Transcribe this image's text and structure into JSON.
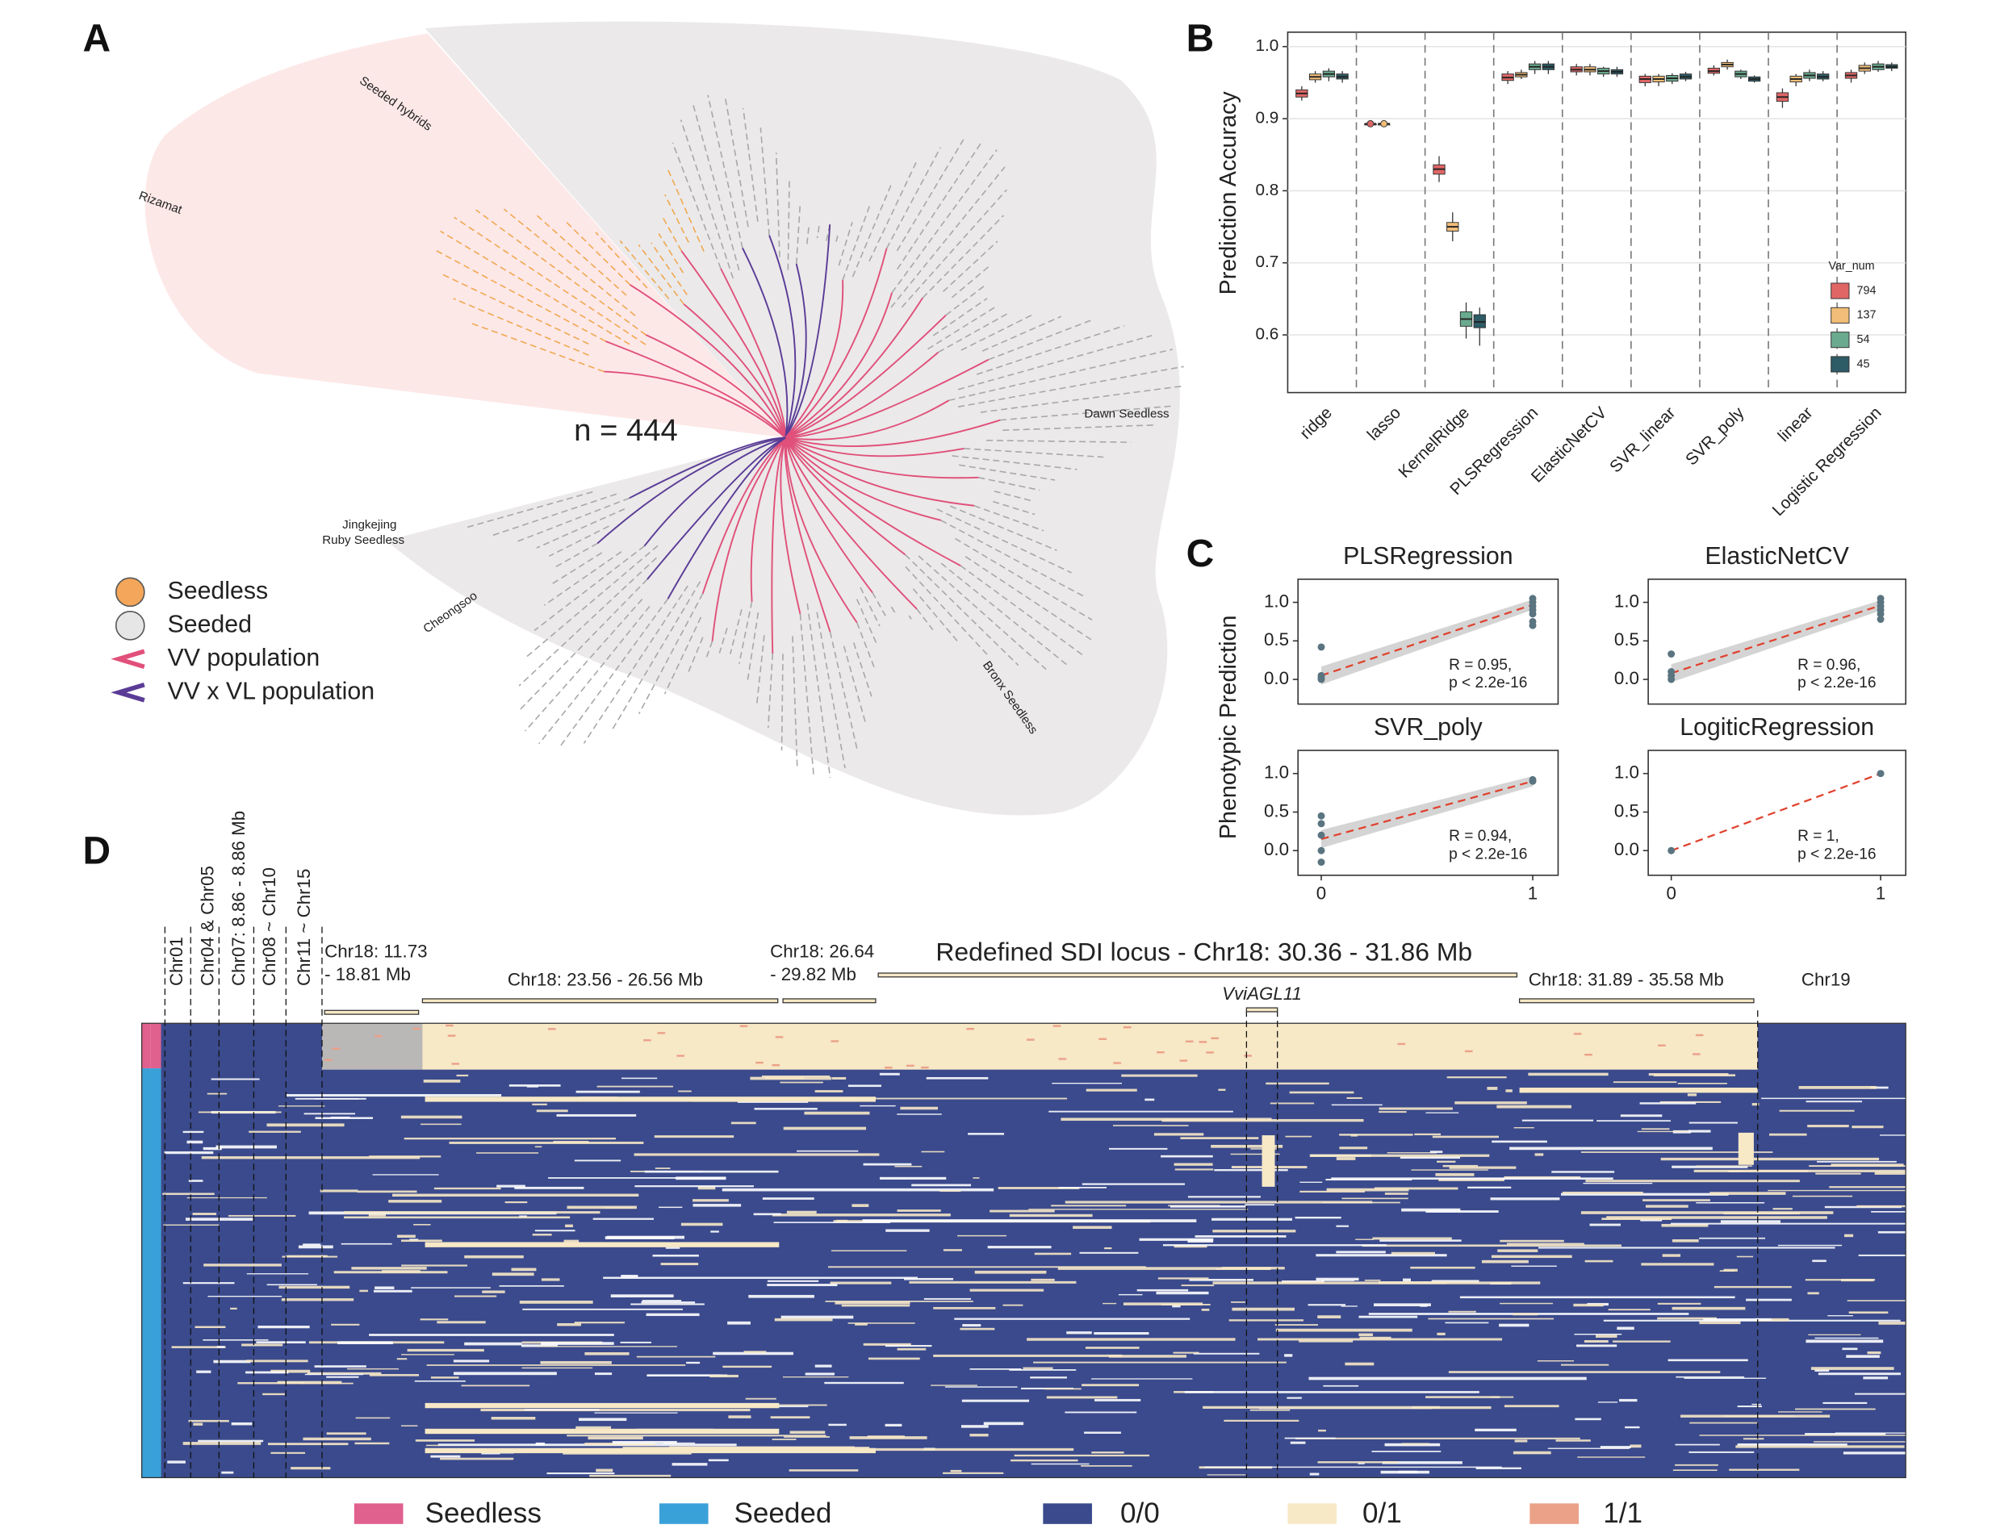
{
  "chart_data": [
    {
      "type": "tree",
      "panel": "A",
      "annotation": "n = 444",
      "tip_labels": [
        "Seeded hybrids",
        "Rizamat",
        "Dawn Seedless",
        "Jingkejing",
        "Ruby Seedless",
        "Cheongsoo",
        "Bronx Seedless"
      ],
      "legend": [
        {
          "name": "Seedless",
          "color": "#f4a65a"
        },
        {
          "name": "Seeded",
          "color": "#e6e6e6"
        },
        {
          "name": "VV population",
          "color": "#e0507a"
        },
        {
          "name": "VV x VL population",
          "color": "#5a3c96"
        }
      ]
    },
    {
      "type": "box",
      "panel": "B",
      "ylabel": "Prediction Accuracy",
      "categories": [
        "ridge",
        "lasso",
        "KernelRidge",
        "PLSRegression",
        "ElasticNetCV",
        "SVR_linear",
        "SVR_poly",
        "linear",
        "Logistic Regression"
      ],
      "ylim": [
        0.52,
        1.02
      ],
      "yticks": [
        0.6,
        0.7,
        0.8,
        0.9,
        {
          "value": 1,
          "label": "1.0"
        }
      ],
      "grid": true,
      "legend_title": "Var_num",
      "series": [
        {
          "name": "794",
          "color": "#e06666",
          "low": [
            0.925,
            0.893,
            0.812,
            0.948,
            0.96,
            0.945,
            0.96,
            0.915,
            0.95
          ],
          "q1": [
            0.93,
            0.893,
            0.823,
            0.953,
            0.965,
            0.95,
            0.963,
            0.924,
            0.956
          ],
          "median": [
            0.935,
            0.893,
            0.83,
            0.957,
            0.968,
            0.955,
            0.966,
            0.93,
            0.96
          ],
          "q3": [
            0.94,
            0.893,
            0.836,
            0.962,
            0.972,
            0.959,
            0.97,
            0.936,
            0.964
          ],
          "high": [
            0.945,
            0.893,
            0.848,
            0.966,
            0.976,
            0.962,
            0.974,
            0.942,
            0.968
          ]
        },
        {
          "name": "137",
          "color": "#f2bd78",
          "low": [
            0.95,
            0.893,
            0.73,
            0.955,
            0.96,
            0.945,
            0.968,
            0.945,
            0.962
          ],
          "q1": [
            0.954,
            0.893,
            0.744,
            0.958,
            0.965,
            0.951,
            0.972,
            0.951,
            0.966
          ],
          "median": [
            0.958,
            0.893,
            0.75,
            0.961,
            0.968,
            0.955,
            0.975,
            0.955,
            0.97
          ],
          "q3": [
            0.962,
            0.893,
            0.756,
            0.964,
            0.972,
            0.959,
            0.978,
            0.959,
            0.974
          ],
          "high": [
            0.966,
            0.893,
            0.77,
            0.968,
            0.976,
            0.962,
            0.982,
            0.962,
            0.978
          ]
        },
        {
          "name": "54",
          "color": "#6aaa8e",
          "low": [
            0.952,
            null,
            0.595,
            0.962,
            0.958,
            0.948,
            0.955,
            0.952,
            0.965
          ],
          "q1": [
            0.958,
            null,
            0.612,
            0.968,
            0.962,
            0.952,
            0.958,
            0.956,
            0.968
          ],
          "median": [
            0.962,
            null,
            0.622,
            0.972,
            0.966,
            0.956,
            0.962,
            0.96,
            0.972
          ],
          "q3": [
            0.966,
            null,
            0.632,
            0.976,
            0.97,
            0.96,
            0.966,
            0.964,
            0.976
          ],
          "high": [
            0.97,
            null,
            0.645,
            0.98,
            0.972,
            0.963,
            0.968,
            0.968,
            0.98
          ]
        },
        {
          "name": "45",
          "color": "#2d5b66",
          "low": [
            0.95,
            null,
            0.585,
            0.962,
            0.958,
            0.952,
            0.95,
            0.952,
            0.966
          ],
          "q1": [
            0.955,
            null,
            0.61,
            0.968,
            0.962,
            0.955,
            0.952,
            0.955,
            0.97
          ],
          "median": [
            0.958,
            null,
            0.618,
            0.972,
            0.965,
            0.958,
            0.955,
            0.958,
            0.972
          ],
          "q3": [
            0.962,
            null,
            0.628,
            0.976,
            0.968,
            0.962,
            0.958,
            0.962,
            0.975
          ],
          "high": [
            0.966,
            null,
            0.638,
            0.98,
            0.972,
            0.965,
            0.96,
            0.966,
            0.978
          ]
        }
      ]
    },
    {
      "type": "scatter",
      "panel": "C",
      "ylabel": "Phenotypic Prediction",
      "title": "PLSRegression",
      "x": [
        0,
        0,
        0,
        0,
        1,
        1,
        1,
        1,
        1,
        1,
        1
      ],
      "y": [
        0.42,
        0.05,
        0.0,
        0.02,
        1.05,
        1.0,
        0.95,
        0.9,
        0.85,
        0.75,
        0.7
      ],
      "fit": {
        "x": [
          0,
          1
        ],
        "y": [
          0.05,
          0.97
        ]
      },
      "annotation": [
        "R = 0.95,",
        "p < 2.2e-16"
      ],
      "xlim": [
        -0.11,
        1.12
      ],
      "ylim": [
        -0.32,
        1.3
      ],
      "yticks": [
        {
          "value": 0,
          "label": "0.0"
        },
        0.5,
        {
          "value": 1,
          "label": "1.0"
        }
      ]
    },
    {
      "type": "scatter",
      "title": "ElasticNetCV",
      "x": [
        0,
        0,
        0,
        0,
        1,
        1,
        1,
        1,
        1,
        1
      ],
      "y": [
        0.33,
        0.1,
        0.0,
        0.05,
        1.05,
        1.0,
        0.95,
        0.9,
        0.85,
        0.78
      ],
      "fit": {
        "x": [
          0,
          1
        ],
        "y": [
          0.08,
          0.96
        ]
      },
      "annotation": [
        "R = 0.96,",
        "p < 2.2e-16"
      ],
      "xlim": [
        -0.11,
        1.12
      ],
      "ylim": [
        -0.32,
        1.3
      ],
      "yticks": [
        {
          "value": 0,
          "label": "0.0"
        },
        0.5,
        {
          "value": 1,
          "label": "1.0"
        }
      ]
    },
    {
      "type": "scatter",
      "title": "SVR_poly",
      "x": [
        0,
        0,
        0,
        0,
        0,
        1,
        1
      ],
      "y": [
        0.45,
        0.35,
        0.2,
        0.0,
        -0.15,
        0.92,
        0.9
      ],
      "fit": {
        "x": [
          0,
          1
        ],
        "y": [
          0.15,
          0.9
        ]
      },
      "annotation": [
        "R = 0.94,",
        "p < 2.2e-16"
      ],
      "xlim": [
        -0.11,
        1.12
      ],
      "ylim": [
        -0.32,
        1.3
      ],
      "xticks": [
        0,
        1
      ],
      "yticks": [
        {
          "value": 0,
          "label": "0.0"
        },
        0.5,
        {
          "value": 1,
          "label": "1.0"
        }
      ]
    },
    {
      "type": "scatter",
      "title": "LogiticRegression",
      "x": [
        0,
        1
      ],
      "y": [
        0,
        1
      ],
      "fit": {
        "x": [
          0,
          1
        ],
        "y": [
          0,
          1
        ]
      },
      "annotation": [
        "R = 1,",
        "p < 2.2e-16"
      ],
      "xlim": [
        -0.11,
        1.12
      ],
      "ylim": [
        -0.32,
        1.3
      ],
      "xticks": [
        0,
        1
      ],
      "yticks": [
        {
          "value": 0,
          "label": "0.0"
        },
        0.5,
        {
          "value": 1,
          "label": "1.0"
        }
      ]
    },
    {
      "type": "heatmap",
      "panel": "D",
      "regions": [
        [
          "Chr01"
        ],
        [
          "Chr04 & Chr05"
        ],
        [
          "Chr07: 8.86 - 8.86 Mb"
        ],
        [
          "Chr08 ~ Chr10"
        ],
        [
          "Chr11 ~ Chr15"
        ],
        [
          "Chr18: 11.73",
          "- 18.81 Mb"
        ],
        [
          "Chr18: 23.56 - 26.56 Mb"
        ],
        [
          "Chr18: 26.64",
          "- 29.82 Mb"
        ],
        [
          "Redefined SDI locus - Chr18: 30.36 - 31.86 Mb"
        ],
        [
          "VviAGL11"
        ],
        [
          "Chr18: 31.89 - 35.58 Mb"
        ],
        [
          "Chr19"
        ]
      ],
      "legend": [
        {
          "name": "Seedless",
          "color": "#e0608e"
        },
        {
          "name": "Seeded",
          "color": "#3aa0d8"
        },
        {
          "name": "0/0",
          "color": "#3a4a8c"
        },
        {
          "name": "0/1",
          "color": "#f7e8c6"
        },
        {
          "name": "1/1",
          "color": "#eba188"
        }
      ]
    }
  ]
}
